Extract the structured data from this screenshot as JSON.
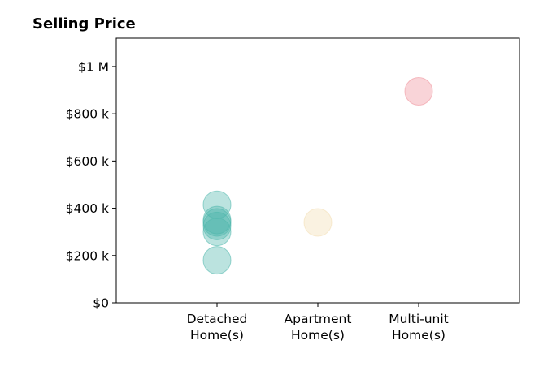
{
  "chart_data": {
    "type": "scatter",
    "title": "Selling Price",
    "xlabel": "",
    "ylabel": "",
    "categories": [
      [
        "Detached",
        "Home(s)"
      ],
      [
        "Apartment",
        "Home(s)"
      ],
      [
        "Multi-unit",
        "Home(s)"
      ]
    ],
    "xlim": [
      -1,
      3
    ],
    "ylim": [
      0,
      1120000
    ],
    "y_ticks": [
      {
        "value": 0,
        "label": "$0"
      },
      {
        "value": 200000,
        "label": "$200 k"
      },
      {
        "value": 400000,
        "label": "$400 k"
      },
      {
        "value": 600000,
        "label": "$600 k"
      },
      {
        "value": 800000,
        "label": "$800 k"
      },
      {
        "value": 1000000,
        "label": "$1 M"
      }
    ],
    "grid": false,
    "series": [
      {
        "category_index": 0,
        "color": "#4db6ac",
        "values": [
          180000,
          300000,
          325000,
          340000,
          350000,
          415000
        ]
      },
      {
        "category_index": 1,
        "color": "#f2ddb0",
        "values": [
          340000
        ]
      },
      {
        "category_index": 2,
        "color": "#ef8f99",
        "values": [
          895000
        ]
      }
    ]
  }
}
